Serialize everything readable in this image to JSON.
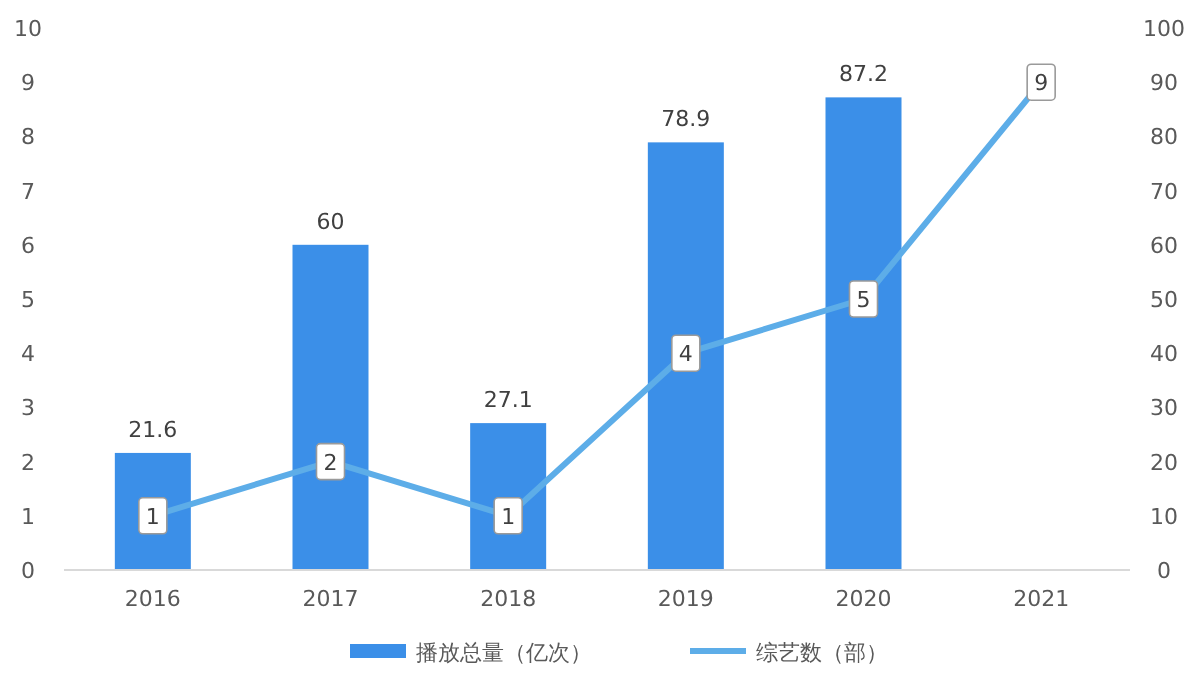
{
  "chart_data": {
    "type": "bar",
    "categories": [
      "2016",
      "2017",
      "2018",
      "2019",
      "2020",
      "2021"
    ],
    "series": [
      {
        "name": "播放总量（亿次）",
        "axis": "y2",
        "color": "#3b8fe8",
        "values": [
          21.6,
          60,
          27.1,
          78.9,
          87.2,
          null
        ]
      },
      {
        "name": "综艺数（部）",
        "type": "line",
        "marker": "square",
        "color": "#5dade8",
        "values": [
          1,
          2,
          1,
          4,
          5,
          9
        ]
      }
    ],
    "ylim": [
      0,
      10
    ],
    "yticks": [
      0,
      1,
      2,
      3,
      4,
      5,
      6,
      7,
      8,
      9,
      10
    ],
    "y2lim": [
      0,
      100
    ],
    "y2ticks": [
      0,
      10,
      20,
      30,
      40,
      50,
      60,
      70,
      80,
      90,
      100
    ],
    "data_labels": true,
    "legend": "bottom",
    "grid": false
  }
}
